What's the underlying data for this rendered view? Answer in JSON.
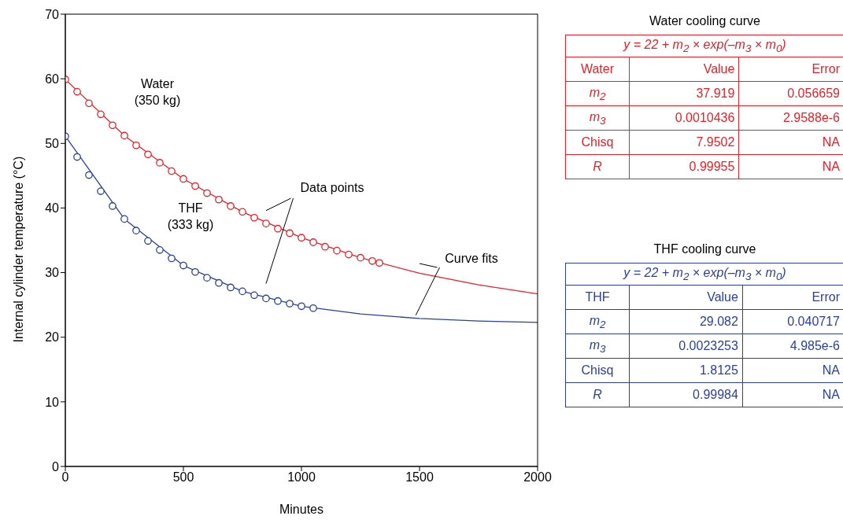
{
  "chart_data": {
    "type": "scatter",
    "xlabel": "Minutes",
    "ylabel": "Internal cylinder temperature (°C)",
    "xlim": [
      0,
      2000
    ],
    "xticks": [
      0,
      500,
      1000,
      1500,
      2000
    ],
    "ylim": [
      0,
      70
    ],
    "yticks": [
      0,
      10,
      20,
      30,
      40,
      50,
      60,
      70
    ],
    "grid": false,
    "legend": false,
    "marker": "circle",
    "series": [
      {
        "color": "#e8202a",
        "x": [
          0,
          50,
          100,
          150,
          200,
          250,
          300,
          350,
          400,
          450,
          500,
          550,
          600,
          650,
          700,
          750,
          800,
          850,
          900,
          950,
          1000,
          1050,
          1100,
          1150,
          1200,
          1250,
          1300,
          1330
        ],
        "values": [
          59.9,
          58.0,
          56.2,
          54.5,
          52.8,
          51.2,
          49.7,
          48.3,
          47.0,
          45.7,
          44.5,
          43.4,
          42.3,
          41.3,
          40.3,
          39.4,
          38.5,
          37.6,
          36.8,
          36.1,
          35.4,
          34.7,
          34.0,
          33.4,
          32.8,
          32.3,
          31.8,
          31.5
        ]
      },
      {
        "type": "line",
        "marker": "none",
        "color": "#e8202a",
        "x": [
          0,
          250,
          500,
          750,
          1000,
          1250,
          1500,
          1750,
          2000
        ],
        "values": [
          59.9,
          51.2,
          44.5,
          39.4,
          35.4,
          32.3,
          29.9,
          28.1,
          26.7
        ]
      },
      {
        "color": "#2b3f9e",
        "x": [
          0,
          50,
          100,
          150,
          200,
          250,
          300,
          350,
          400,
          450,
          500,
          550,
          600,
          650,
          700,
          750,
          800,
          850,
          900,
          950,
          1000,
          1050
        ],
        "values": [
          51.1,
          47.9,
          45.1,
          42.6,
          40.3,
          38.3,
          36.5,
          34.9,
          33.5,
          32.2,
          31.1,
          30.1,
          29.2,
          28.4,
          27.7,
          27.1,
          26.5,
          26.0,
          25.6,
          25.2,
          24.8,
          24.5
        ]
      },
      {
        "type": "line",
        "marker": "none",
        "color": "#2b3f9e",
        "x": [
          0,
          250,
          500,
          750,
          1000,
          1250,
          1500,
          1750,
          2000
        ],
        "values": [
          51.1,
          38.3,
          31.1,
          27.1,
          24.8,
          23.6,
          22.9,
          22.5,
          22.3
        ]
      }
    ],
    "annotations": [
      "Water\n(350 kg)",
      "THF\n(333 kg)",
      "Data points",
      {
        "text": "Curve fits",
        "x": 1500,
        "y": 29.9
      },
      "Water cooling curve",
      "y = 22 + m$_{2}$ × exp(–m$_{3}$ × m$_{0}$)",
      "Water",
      "Value",
      "Error",
      "m$_{2}$",
      "37.919",
      "0.056659",
      "m$_{3}$",
      "0.0010436",
      "2.9588e-6",
      "Chisq",
      "7.9502",
      "NA",
      "R",
      "0.99955",
      "NA",
      "THF cooling curve",
      "y = 22 + m$_{2}$ × exp(–m$_{3}$ × m$_{0}$)",
      "THF",
      "Value",
      "Error",
      "m$_{2}$",
      "29.082",
      "0.040717",
      "m$_{3}$",
      "0.0023253",
      "4.985e-6",
      "Chisq",
      "1.8125",
      "NA",
      "R",
      "0.99984",
      "NA"
    ]
  }
}
